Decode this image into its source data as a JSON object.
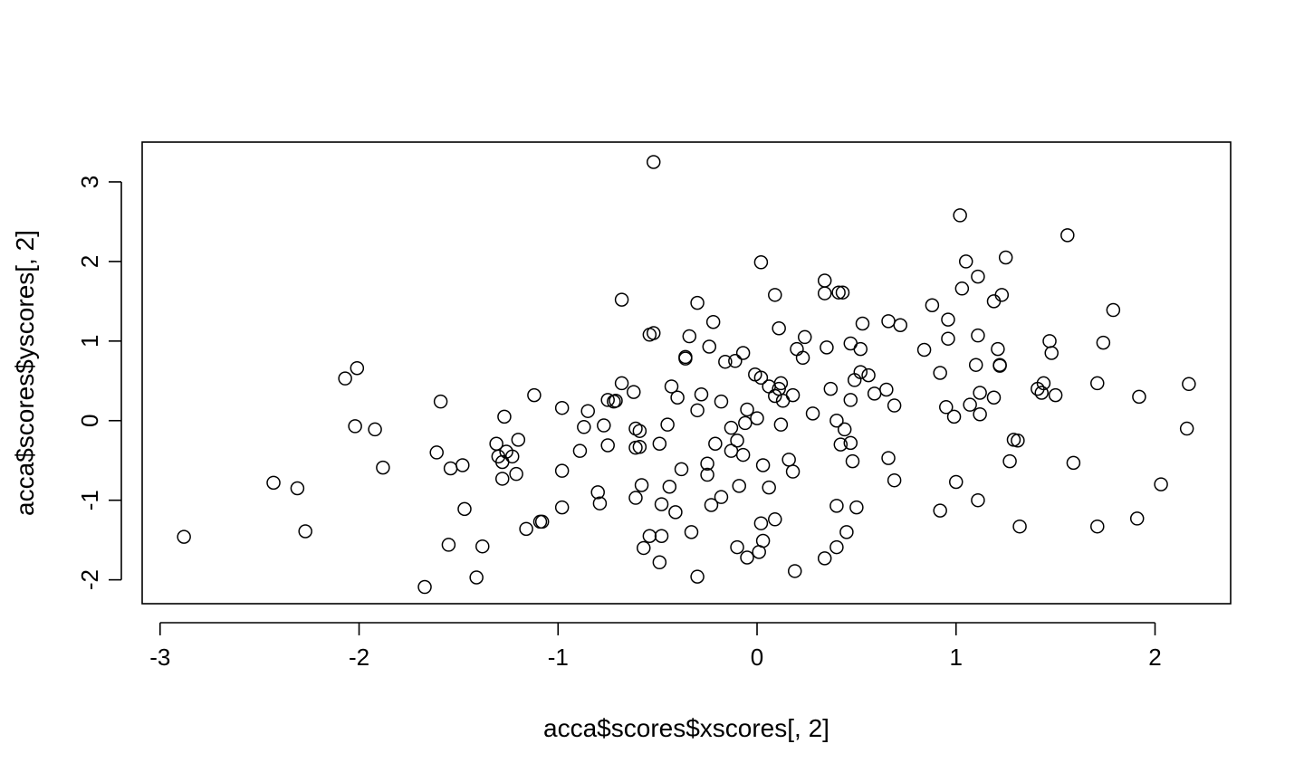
{
  "chart_data": {
    "type": "scatter",
    "title": "",
    "xlabel": "acca$scores$xscores[, 2]",
    "ylabel": "acca$scores$yscores[, 2]",
    "xlim": [
      -3.09,
      2.38
    ],
    "ylim": [
      -2.3,
      3.5
    ],
    "xticks": [
      -3,
      -2,
      -1,
      0,
      1,
      2
    ],
    "xtick_labels": [
      "-3",
      "-2",
      "-1",
      "0",
      "1",
      "2"
    ],
    "yticks": [
      -2,
      -1,
      0,
      1,
      2,
      3
    ],
    "ytick_labels": [
      "-2",
      "-1",
      "0",
      "1",
      "2",
      "3"
    ],
    "grid": false,
    "marker": "open-circle",
    "points": [
      [
        -2.88,
        -1.46
      ],
      [
        -2.43,
        -0.78
      ],
      [
        -2.31,
        -0.85
      ],
      [
        -2.27,
        -1.39
      ],
      [
        -2.07,
        0.53
      ],
      [
        -2.02,
        -0.07
      ],
      [
        -2.01,
        0.66
      ],
      [
        -1.92,
        -0.11
      ],
      [
        -1.88,
        -0.59
      ],
      [
        -1.67,
        -2.09
      ],
      [
        -1.61,
        -0.4
      ],
      [
        -1.59,
        0.24
      ],
      [
        -1.55,
        -1.56
      ],
      [
        -1.54,
        -0.6
      ],
      [
        -1.48,
        -0.56
      ],
      [
        -1.47,
        -1.11
      ],
      [
        -1.41,
        -1.97
      ],
      [
        -1.38,
        -1.58
      ],
      [
        -1.31,
        -0.29
      ],
      [
        -1.3,
        -0.45
      ],
      [
        -1.28,
        -0.73
      ],
      [
        -1.28,
        -0.52
      ],
      [
        -1.27,
        0.05
      ],
      [
        -1.26,
        -0.39
      ],
      [
        -1.23,
        -0.45
      ],
      [
        -1.21,
        -0.67
      ],
      [
        -1.2,
        -0.24
      ],
      [
        -1.16,
        -1.36
      ],
      [
        -1.12,
        0.32
      ],
      [
        -1.09,
        -1.27
      ],
      [
        -1.08,
        -1.27
      ],
      [
        -0.98,
        -0.63
      ],
      [
        -0.98,
        -1.09
      ],
      [
        -0.98,
        0.16
      ],
      [
        -0.89,
        -0.38
      ],
      [
        -0.87,
        -0.08
      ],
      [
        -0.85,
        0.12
      ],
      [
        -0.8,
        -0.9
      ],
      [
        -0.79,
        -1.04
      ],
      [
        -0.77,
        -0.06
      ],
      [
        -0.75,
        -0.31
      ],
      [
        -0.75,
        0.26
      ],
      [
        -0.72,
        0.24
      ],
      [
        -0.71,
        0.25
      ],
      [
        -0.68,
        0.47
      ],
      [
        -0.68,
        1.52
      ],
      [
        -0.62,
        0.36
      ],
      [
        -0.61,
        -0.1
      ],
      [
        -0.61,
        -0.34
      ],
      [
        -0.61,
        -0.97
      ],
      [
        -0.59,
        -0.13
      ],
      [
        -0.59,
        -0.33
      ],
      [
        -0.58,
        -0.81
      ],
      [
        -0.57,
        -1.6
      ],
      [
        -0.54,
        -1.45
      ],
      [
        -0.54,
        1.08
      ],
      [
        -0.52,
        1.1
      ],
      [
        -0.52,
        3.25
      ],
      [
        -0.49,
        -0.29
      ],
      [
        -0.49,
        -1.78
      ],
      [
        -0.48,
        -1.05
      ],
      [
        -0.48,
        -1.45
      ],
      [
        -0.45,
        -0.05
      ],
      [
        -0.44,
        -0.83
      ],
      [
        -0.43,
        0.43
      ],
      [
        -0.41,
        -1.15
      ],
      [
        -0.4,
        0.29
      ],
      [
        -0.38,
        -0.61
      ],
      [
        -0.36,
        0.8
      ],
      [
        -0.36,
        0.78
      ],
      [
        -0.34,
        1.06
      ],
      [
        -0.33,
        -1.4
      ],
      [
        -0.3,
        -1.96
      ],
      [
        -0.3,
        0.13
      ],
      [
        -0.3,
        1.48
      ],
      [
        -0.28,
        0.33
      ],
      [
        -0.25,
        -0.54
      ],
      [
        -0.25,
        -0.68
      ],
      [
        -0.24,
        0.93
      ],
      [
        -0.23,
        -1.06
      ],
      [
        -0.22,
        1.24
      ],
      [
        -0.21,
        -0.29
      ],
      [
        -0.18,
        -0.96
      ],
      [
        -0.18,
        0.24
      ],
      [
        -0.16,
        0.74
      ],
      [
        -0.13,
        -0.09
      ],
      [
        -0.13,
        -0.38
      ],
      [
        -0.11,
        0.75
      ],
      [
        -0.1,
        -0.25
      ],
      [
        -0.1,
        -1.59
      ],
      [
        -0.09,
        -0.82
      ],
      [
        -0.07,
        -0.43
      ],
      [
        -0.07,
        0.85
      ],
      [
        -0.06,
        -0.03
      ],
      [
        -0.05,
        0.14
      ],
      [
        -0.05,
        -1.72
      ],
      [
        -0.01,
        0.58
      ],
      [
        0.0,
        0.03
      ],
      [
        0.01,
        -1.65
      ],
      [
        0.02,
        1.99
      ],
      [
        0.02,
        -1.29
      ],
      [
        0.02,
        0.54
      ],
      [
        0.03,
        -0.56
      ],
      [
        0.03,
        -1.51
      ],
      [
        0.06,
        0.43
      ],
      [
        0.06,
        -0.84
      ],
      [
        0.09,
        1.58
      ],
      [
        0.09,
        -1.24
      ],
      [
        0.09,
        0.31
      ],
      [
        0.11,
        0.4
      ],
      [
        0.11,
        1.16
      ],
      [
        0.12,
        0.47
      ],
      [
        0.12,
        -0.05
      ],
      [
        0.13,
        0.25
      ],
      [
        0.16,
        -0.49
      ],
      [
        0.18,
        -0.64
      ],
      [
        0.18,
        0.32
      ],
      [
        0.19,
        -1.89
      ],
      [
        0.2,
        0.9
      ],
      [
        0.23,
        0.79
      ],
      [
        0.24,
        1.05
      ],
      [
        0.28,
        0.09
      ],
      [
        0.34,
        1.76
      ],
      [
        0.34,
        1.6
      ],
      [
        0.34,
        -1.73
      ],
      [
        0.35,
        0.92
      ],
      [
        0.37,
        0.4
      ],
      [
        0.4,
        0.0
      ],
      [
        0.4,
        -1.59
      ],
      [
        0.4,
        -1.07
      ],
      [
        0.41,
        1.61
      ],
      [
        0.42,
        -0.3
      ],
      [
        0.43,
        1.61
      ],
      [
        0.44,
        -0.11
      ],
      [
        0.45,
        -1.4
      ],
      [
        0.47,
        0.97
      ],
      [
        0.47,
        -0.28
      ],
      [
        0.47,
        0.26
      ],
      [
        0.48,
        -0.51
      ],
      [
        0.49,
        0.51
      ],
      [
        0.5,
        -1.09
      ],
      [
        0.52,
        0.61
      ],
      [
        0.52,
        0.9
      ],
      [
        0.53,
        1.22
      ],
      [
        0.56,
        0.57
      ],
      [
        0.59,
        0.34
      ],
      [
        0.65,
        0.39
      ],
      [
        0.66,
        1.25
      ],
      [
        0.66,
        -0.47
      ],
      [
        0.69,
        0.19
      ],
      [
        0.69,
        -0.75
      ],
      [
        0.72,
        1.2
      ],
      [
        0.84,
        0.89
      ],
      [
        0.88,
        1.45
      ],
      [
        0.92,
        0.6
      ],
      [
        0.92,
        -1.13
      ],
      [
        0.95,
        0.17
      ],
      [
        0.96,
        1.03
      ],
      [
        0.96,
        1.27
      ],
      [
        0.99,
        0.05
      ],
      [
        1.0,
        -0.77
      ],
      [
        1.02,
        2.58
      ],
      [
        1.03,
        1.66
      ],
      [
        1.05,
        2.0
      ],
      [
        1.07,
        0.2
      ],
      [
        1.1,
        0.7
      ],
      [
        1.11,
        1.81
      ],
      [
        1.11,
        1.07
      ],
      [
        1.11,
        -1.0
      ],
      [
        1.12,
        0.08
      ],
      [
        1.12,
        0.35
      ],
      [
        1.19,
        0.29
      ],
      [
        1.19,
        1.5
      ],
      [
        1.21,
        0.9
      ],
      [
        1.22,
        0.7
      ],
      [
        1.22,
        0.69
      ],
      [
        1.23,
        1.58
      ],
      [
        1.25,
        2.05
      ],
      [
        1.27,
        -0.51
      ],
      [
        1.29,
        -0.24
      ],
      [
        1.31,
        -0.25
      ],
      [
        1.32,
        -1.33
      ],
      [
        1.41,
        0.4
      ],
      [
        1.43,
        0.35
      ],
      [
        1.44,
        0.47
      ],
      [
        1.47,
        1.0
      ],
      [
        1.48,
        0.85
      ],
      [
        1.5,
        0.32
      ],
      [
        1.56,
        2.33
      ],
      [
        1.59,
        -0.53
      ],
      [
        1.71,
        0.47
      ],
      [
        1.71,
        -1.33
      ],
      [
        1.74,
        0.98
      ],
      [
        1.79,
        1.39
      ],
      [
        1.91,
        -1.23
      ],
      [
        1.92,
        0.3
      ],
      [
        2.03,
        -0.8
      ],
      [
        2.16,
        -0.1
      ],
      [
        2.17,
        0.46
      ]
    ]
  }
}
